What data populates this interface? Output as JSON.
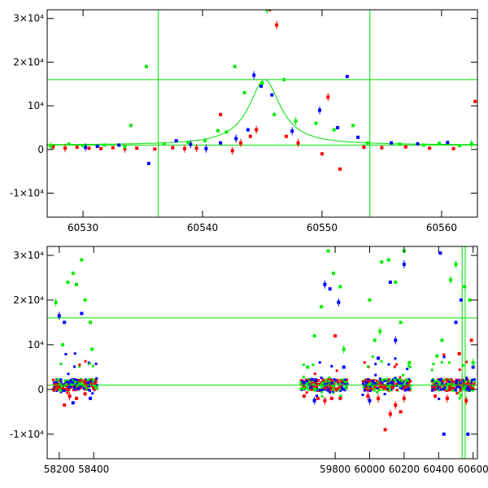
{
  "chart_data": [
    {
      "type": "scatter",
      "xlim": [
        60527,
        60563
      ],
      "ylim": [
        -15500,
        32000
      ],
      "x_ticks": [
        60530,
        60540,
        60550,
        60560
      ],
      "y_ticks": [
        -10000,
        0,
        10000,
        20000,
        30000
      ],
      "y_tick_labels": [
        "-1×10⁴",
        "0",
        "10⁴",
        "2×10⁴",
        "3×10⁴"
      ],
      "hlines": [
        16000,
        1000
      ],
      "vlines": [
        60536.3,
        60554.0
      ],
      "model_curve": {
        "color": "#00dd00",
        "baseline": 1000,
        "peak": 16000,
        "center": 60545.2,
        "width": 1.6
      },
      "series": [
        {
          "color": "#ff0000",
          "points": [
            [
              60527.5,
              600
            ],
            [
              60528.5,
              300
            ],
            [
              60529.5,
              500
            ],
            [
              60530.5,
              300
            ],
            [
              60531.5,
              200
            ],
            [
              60532.5,
              400
            ],
            [
              60533.5,
              200
            ],
            [
              60534.5,
              300
            ],
            [
              60536.0,
              100
            ],
            [
              60537.5,
              400
            ],
            [
              60538.5,
              200
            ],
            [
              60539.5,
              300
            ],
            [
              60541.5,
              8000
            ],
            [
              60542.5,
              -300
            ],
            [
              60543.2,
              1500
            ],
            [
              60544.0,
              3000
            ],
            [
              60544.5,
              4500
            ],
            [
              60545.6,
              32000
            ],
            [
              60546.2,
              28500
            ],
            [
              60547.0,
              3000
            ],
            [
              60548.0,
              1500
            ],
            [
              60550.0,
              -1000
            ],
            [
              60550.5,
              12000
            ],
            [
              60551.5,
              -4500
            ],
            [
              60553.5,
              500
            ],
            [
              60555.0,
              400
            ],
            [
              60557.0,
              600
            ],
            [
              60559.0,
              300
            ],
            [
              60561.0,
              200
            ],
            [
              60562.8,
              11000
            ]
          ]
        },
        {
          "color": "#0000ff",
          "points": [
            [
              60530.2,
              500
            ],
            [
              60531.2,
              700
            ],
            [
              60533.0,
              1000
            ],
            [
              60535.5,
              -3200
            ],
            [
              60537.8,
              2000
            ],
            [
              60539.0,
              1200
            ],
            [
              60540.3,
              200
            ],
            [
              60541.5,
              1500
            ],
            [
              60542.8,
              2500
            ],
            [
              60543.8,
              4500
            ],
            [
              60544.3,
              17000
            ],
            [
              60544.9,
              14500
            ],
            [
              60545.8,
              12500
            ],
            [
              60547.5,
              4200
            ],
            [
              60549.8,
              9000
            ],
            [
              60551.3,
              5000
            ],
            [
              60552.1,
              16700
            ],
            [
              60553.0,
              2800
            ],
            [
              60555.8,
              1500
            ],
            [
              60558.0,
              1300
            ],
            [
              60560.5,
              1600
            ]
          ]
        },
        {
          "color": "#00ee00",
          "points": [
            [
              60527.3,
              800
            ],
            [
              60528.8,
              1200
            ],
            [
              60530.0,
              900
            ],
            [
              60531.8,
              1000
            ],
            [
              60533.5,
              600
            ],
            [
              60534.0,
              5500
            ],
            [
              60535.3,
              19000
            ],
            [
              60536.8,
              1300
            ],
            [
              60538.8,
              1600
            ],
            [
              60540.2,
              2000
            ],
            [
              60541.3,
              4300
            ],
            [
              60542.0,
              4000
            ],
            [
              60542.7,
              19000
            ],
            [
              60543.5,
              13000
            ],
            [
              60545.0,
              15200
            ],
            [
              60545.4,
              32000
            ],
            [
              60546.0,
              8000
            ],
            [
              60546.8,
              16000
            ],
            [
              60547.8,
              6500
            ],
            [
              60549.5,
              6000
            ],
            [
              60551.0,
              4500
            ],
            [
              60552.6,
              5500
            ],
            [
              60553.8,
              1500
            ],
            [
              60556.5,
              1200
            ],
            [
              60558.5,
              1000
            ],
            [
              60559.8,
              1400
            ],
            [
              60561.5,
              900
            ],
            [
              60562.5,
              1300
            ]
          ]
        }
      ]
    },
    {
      "type": "scatter",
      "xlim": [
        58130,
        60625
      ],
      "ylim": [
        -15500,
        32000
      ],
      "x_ticks": [
        58200,
        58400,
        59800,
        60000,
        60200,
        60400,
        60600
      ],
      "y_ticks": [
        -10000,
        0,
        10000,
        20000,
        30000
      ],
      "y_tick_labels": [
        "-1×10⁴",
        "0",
        "10⁴",
        "2×10⁴",
        "3×10⁴"
      ],
      "hlines": [
        16000,
        1000
      ],
      "vlines": [
        60536.3,
        60554.0
      ],
      "seasons": [
        [
          58165,
          58420
        ],
        [
          59600,
          59870
        ],
        [
          59960,
          60240
        ],
        [
          60360,
          60610
        ]
      ],
      "series": [
        {
          "color": "#ff0000",
          "points": [
            [
              58230,
              -3500
            ],
            [
              58260,
              -1500
            ],
            [
              58300,
              -2000
            ],
            [
              58350,
              -1000
            ],
            [
              59620,
              -1500
            ],
            [
              59700,
              -2000
            ],
            [
              59740,
              -2500
            ],
            [
              59780,
              -2000
            ],
            [
              59800,
              12000
            ],
            [
              59830,
              -2000
            ],
            [
              59990,
              -1500
            ],
            [
              60050,
              -2000
            ],
            [
              60090,
              -9000
            ],
            [
              60120,
              -5500
            ],
            [
              60150,
              -3500
            ],
            [
              60180,
              -5000
            ],
            [
              60200,
              -2000
            ],
            [
              60380,
              -1500
            ],
            [
              60450,
              -2000
            ],
            [
              60520,
              8000
            ],
            [
              60560,
              -2500
            ],
            [
              60590,
              11000
            ]
          ]
        },
        {
          "color": "#0000ff",
          "points": [
            [
              58200,
              16500
            ],
            [
              58230,
              15000
            ],
            [
              58280,
              -3000
            ],
            [
              58330,
              17000
            ],
            [
              58380,
              -2000
            ],
            [
              59680,
              -2500
            ],
            [
              59740,
              23500
            ],
            [
              59770,
              22500
            ],
            [
              59820,
              19500
            ],
            [
              59850,
              5000
            ],
            [
              60000,
              -2500
            ],
            [
              60050,
              7000
            ],
            [
              60120,
              24000
            ],
            [
              60150,
              11000
            ],
            [
              60200,
              28000
            ],
            [
              60410,
              30500
            ],
            [
              60430,
              -10000
            ],
            [
              60500,
              15000
            ],
            [
              60530,
              20000
            ],
            [
              60570,
              -10000
            ],
            [
              60600,
              5000
            ]
          ]
        },
        {
          "color": "#00ee00",
          "points": [
            [
              58180,
              19500
            ],
            [
              58220,
              10000
            ],
            [
              58250,
              24000
            ],
            [
              58280,
              26000
            ],
            [
              58300,
              23500
            ],
            [
              58330,
              29000
            ],
            [
              58350,
              20000
            ],
            [
              58380,
              15000
            ],
            [
              58390,
              9000
            ],
            [
              59640,
              5000
            ],
            [
              59680,
              12000
            ],
            [
              59720,
              18500
            ],
            [
              59760,
              31000
            ],
            [
              59790,
              26000
            ],
            [
              59830,
              23000
            ],
            [
              59850,
              9000
            ],
            [
              60000,
              20000
            ],
            [
              60030,
              11000
            ],
            [
              60060,
              13000
            ],
            [
              60070,
              28500
            ],
            [
              60110,
              29000
            ],
            [
              60150,
              24000
            ],
            [
              60180,
              15000
            ],
            [
              60200,
              31000
            ],
            [
              60230,
              6000
            ],
            [
              60390,
              7500
            ],
            [
              60420,
              11000
            ],
            [
              60470,
              24500
            ],
            [
              60500,
              28000
            ],
            [
              60550,
              23000
            ],
            [
              60580,
              20000
            ],
            [
              60600,
              6000
            ]
          ]
        }
      ]
    }
  ]
}
